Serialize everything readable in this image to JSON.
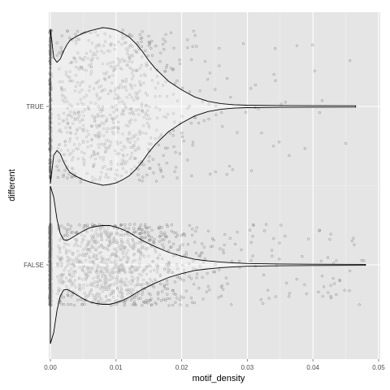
{
  "chart_data": {
    "type": "violin",
    "title": "",
    "xlabel": "motif_density",
    "ylabel": "different",
    "xlim": [
      -0.00025,
      0.05025
    ],
    "x_ticks": [
      "0.00",
      "0.01",
      "0.02",
      "0.03",
      "0.04",
      "0.05"
    ],
    "x_tick_values": [
      0.0,
      0.01,
      0.02,
      0.03,
      0.04,
      0.05
    ],
    "categories": [
      "TRUE",
      "FALSE"
    ],
    "grid": true,
    "background": "#e5e5e5",
    "gridline_color": "#ffffff",
    "point_color": "#808080",
    "outline_color": "#000000",
    "violins": [
      {
        "category": "TRUE",
        "x": [
          0.0,
          0.0005,
          0.001,
          0.0015,
          0.002,
          0.0025,
          0.003,
          0.004,
          0.005,
          0.006,
          0.007,
          0.008,
          0.009,
          0.01,
          0.011,
          0.012,
          0.013,
          0.014,
          0.015,
          0.016,
          0.018,
          0.02,
          0.022,
          0.024,
          0.026,
          0.028,
          0.03,
          0.035,
          0.04,
          0.0465
        ],
        "density": [
          0.98,
          0.62,
          0.56,
          0.6,
          0.7,
          0.78,
          0.84,
          0.89,
          0.93,
          0.96,
          0.98,
          1.0,
          0.99,
          0.97,
          0.93,
          0.88,
          0.8,
          0.7,
          0.58,
          0.48,
          0.32,
          0.21,
          0.12,
          0.065,
          0.035,
          0.022,
          0.015,
          0.011,
          0.009,
          0.008
        ]
      },
      {
        "category": "FALSE",
        "x": [
          0.0,
          0.0005,
          0.001,
          0.0015,
          0.002,
          0.0025,
          0.003,
          0.004,
          0.005,
          0.006,
          0.007,
          0.008,
          0.009,
          0.01,
          0.011,
          0.012,
          0.013,
          0.014,
          0.015,
          0.016,
          0.018,
          0.02,
          0.022,
          0.024,
          0.026,
          0.028,
          0.03,
          0.035,
          0.04,
          0.048
        ],
        "density": [
          1.0,
          0.86,
          0.58,
          0.4,
          0.32,
          0.31,
          0.33,
          0.38,
          0.43,
          0.47,
          0.49,
          0.5,
          0.5,
          0.48,
          0.45,
          0.41,
          0.36,
          0.31,
          0.27,
          0.23,
          0.16,
          0.11,
          0.07,
          0.05,
          0.035,
          0.025,
          0.018,
          0.011,
          0.008,
          0.006
        ]
      }
    ],
    "jitter_points": {
      "TRUE": {
        "count_zero": 150,
        "count": 780,
        "spread": 0.47
      },
      "FALSE": {
        "count_zero": 320,
        "count": 1050,
        "spread": 0.25
      }
    }
  }
}
